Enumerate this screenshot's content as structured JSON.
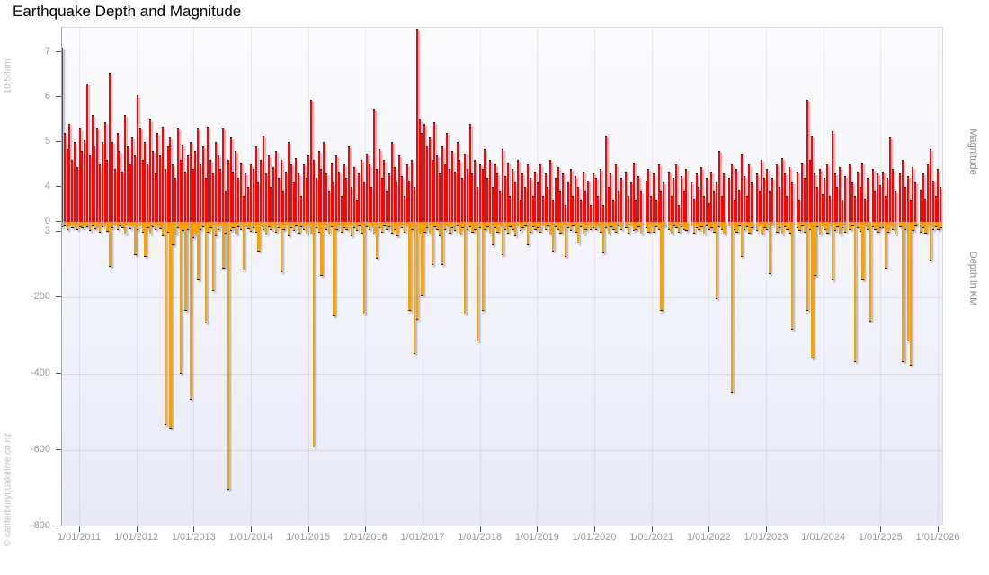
{
  "page": {
    "title": "Earthquake Depth and Magnitude"
  },
  "watermarks": {
    "left_top": "10:58am",
    "left_bottom": "© canterburyquakelive.co.nz"
  },
  "axes": {
    "right_label_magnitude": "Magnitude",
    "right_label_depth": "Depth in KM",
    "magnitude_ticks": [
      7,
      6,
      5,
      4,
      3
    ],
    "depth_ticks": [
      0,
      -200,
      -400,
      -600,
      -800
    ],
    "x_ticks": [
      "1/01/2011",
      "1/01/2012",
      "1/01/2013",
      "1/01/2014",
      "1/01/2015",
      "1/01/2016",
      "1/01/2017",
      "1/01/2018",
      "1/01/2019",
      "1/01/2020",
      "1/01/2021",
      "1/01/2022",
      "1/01/2023",
      "1/01/2024",
      "1/01/2025",
      "1/01/2026"
    ]
  },
  "colors": {
    "magnitude_bar": "#ee0a0a",
    "depth_bar": "#f6a104",
    "bar_outline": "#1d1408",
    "bar_shadow": "rgba(120,120,125,0.55)",
    "axis_line": "#a6a6ae",
    "tick_label": "#97979f",
    "plot_bg_top": "#fcfcfe",
    "plot_bg_bottom": "#e9eaf6"
  },
  "chart_data": {
    "type": "bar",
    "title": "Earthquake Depth and Magnitude",
    "x_axis": {
      "start_year_fraction": 2010.69,
      "end_year_fraction": 2026.08,
      "slot_step_years": 0.044,
      "tick_labels": [
        "1/01/2011",
        "1/01/2012",
        "1/01/2013",
        "1/01/2014",
        "1/01/2015",
        "1/01/2016",
        "1/01/2017",
        "1/01/2018",
        "1/01/2019",
        "1/01/2020",
        "1/01/2021",
        "1/01/2022",
        "1/01/2023",
        "1/01/2024",
        "1/01/2025",
        "1/01/2026"
      ]
    },
    "magnitude_axis": {
      "label": "Magnitude",
      "range": [
        3,
        7.54
      ],
      "ticks": [
        3,
        4,
        5,
        6,
        7
      ]
    },
    "depth_axis": {
      "label": "Depth in KM",
      "range": [
        0,
        -800
      ],
      "ticks": [
        0,
        -200,
        -400,
        -600,
        -800
      ],
      "plotted_downward": true
    },
    "grid": {
      "vertical_per_year": true,
      "horizontal_depth_lines": [
        -200,
        -400,
        -600
      ]
    },
    "legend_position": "none",
    "series": [
      {
        "name": "Magnitude",
        "color": "#ee0a0a",
        "axis": "magnitude",
        "values": [
          7.1,
          5.2,
          4.85,
          5.4,
          4.6,
          5.0,
          4.45,
          5.3,
          4.8,
          5.05,
          6.3,
          4.7,
          5.6,
          4.9,
          5.3,
          4.5,
          5.0,
          5.45,
          4.6,
          6.55,
          5.0,
          4.4,
          5.2,
          4.8,
          4.35,
          5.6,
          4.9,
          4.5,
          5.1,
          4.7,
          6.05,
          5.3,
          4.6,
          5.0,
          4.5,
          5.5,
          4.8,
          4.3,
          5.2,
          4.7,
          5.35,
          4.4,
          4.9,
          5.1,
          4.5,
          4.2,
          5.3,
          4.6,
          4.95,
          4.35,
          4.7,
          5.0,
          4.4,
          4.8,
          5.3,
          4.5,
          4.9,
          4.2,
          5.35,
          4.6,
          4.3,
          5.0,
          4.7,
          4.4,
          5.3,
          3.9,
          4.6,
          5.1,
          4.35,
          4.8,
          4.2,
          4.55,
          3.8,
          4.3,
          4.0,
          4.5,
          4.4,
          4.9,
          4.1,
          4.6,
          5.15,
          4.3,
          4.7,
          4.0,
          4.45,
          4.8,
          4.2,
          4.6,
          3.9,
          4.35,
          5.0,
          4.5,
          4.1,
          4.65,
          4.3,
          3.8,
          4.5,
          4.2,
          4.7,
          5.95,
          4.6,
          4.2,
          4.8,
          4.4,
          5.0,
          4.3,
          3.9,
          4.55,
          4.1,
          4.7,
          4.35,
          3.8,
          4.5,
          4.2,
          4.9,
          4.0,
          4.45,
          3.7,
          4.3,
          4.6,
          4.1,
          4.75,
          4.5,
          4.0,
          5.75,
          4.4,
          4.85,
          4.2,
          4.6,
          3.9,
          4.3,
          5.0,
          4.45,
          4.1,
          4.7,
          4.25,
          3.8,
          4.5,
          4.15,
          4.6,
          4.0,
          7.52,
          5.5,
          5.2,
          5.4,
          4.9,
          5.1,
          4.6,
          5.45,
          4.7,
          4.3,
          4.9,
          4.5,
          5.2,
          4.4,
          4.8,
          4.35,
          5.0,
          4.6,
          4.2,
          4.75,
          4.4,
          5.4,
          4.3,
          4.6,
          4.0,
          4.5,
          4.4,
          4.85,
          4.2,
          4.6,
          4.0,
          4.5,
          4.3,
          3.9,
          4.85,
          4.25,
          4.55,
          3.8,
          4.4,
          4.1,
          4.6,
          3.7,
          4.3,
          4.0,
          4.5,
          4.2,
          3.8,
          4.35,
          4.1,
          4.5,
          3.8,
          4.3,
          4.0,
          4.6,
          3.7,
          4.2,
          4.45,
          3.9,
          4.3,
          3.6,
          4.1,
          4.4,
          3.8,
          4.25,
          4.0,
          3.7,
          4.35,
          3.9,
          4.15,
          3.6,
          4.3,
          4.2,
          3.8,
          4.4,
          3.6,
          5.15,
          4.0,
          4.3,
          3.7,
          4.5,
          3.9,
          4.2,
          null,
          4.35,
          3.8,
          4.1,
          4.55,
          3.7,
          4.25,
          3.9,
          null,
          4.15,
          4.4,
          3.8,
          4.3,
          3.7,
          4.5,
          3.9,
          4.1,
          null,
          4.35,
          3.8,
          4.2,
          4.5,
          3.6,
          4.25,
          3.9,
          4.4,
          null,
          4.1,
          3.75,
          4.3,
          4.0,
          4.45,
          3.8,
          4.2,
          3.65,
          4.35,
          3.9,
          4.1,
          4.8,
          3.8,
          4.3,
          null,
          4.2,
          4.5,
          3.7,
          4.4,
          3.95,
          4.75,
          4.25,
          3.8,
          4.5,
          4.1,
          null,
          4.3,
          3.9,
          4.6,
          4.2,
          4.4,
          3.9,
          4.2,
          null,
          4.5,
          4.0,
          4.65,
          4.3,
          3.8,
          4.45,
          4.1,
          null,
          4.35,
          3.7,
          4.55,
          4.2,
          5.95,
          4.6,
          5.15,
          4.3,
          4.0,
          4.4,
          3.85,
          4.2,
          4.5,
          3.8,
          5.25,
          4.3,
          4.0,
          4.45,
          3.7,
          4.25,
          null,
          4.5,
          4.1,
          3.8,
          4.35,
          4.0,
          4.55,
          3.75,
          4.2,
          null,
          4.4,
          3.9,
          4.3,
          4.05,
          4.35,
          3.8,
          4.2,
          5.1,
          4.4,
          3.9,
          null,
          4.3,
          4.6,
          4.0,
          4.25,
          3.7,
          4.45,
          4.1,
          null,
          3.95,
          4.3,
          3.75,
          4.5,
          4.85,
          4.15,
          3.8,
          4.4,
          4.0,
          4.3
        ]
      },
      {
        "name": "Depth in KM",
        "color": "#f6a104",
        "axis": "depth",
        "values_km_below_surface": [
          12,
          8,
          20,
          10,
          15,
          9,
          18,
          11,
          14,
          9,
          12,
          22,
          8,
          16,
          10,
          25,
          12,
          9,
          24,
          115,
          15,
          10,
          20,
          8,
          14,
          30,
          10,
          16,
          9,
          85,
          18,
          10,
          25,
          90,
          15,
          30,
          12,
          20,
          9,
          16,
          35,
          530,
          25,
          540,
          60,
          30,
          14,
          395,
          22,
          230,
          18,
          465,
          40,
          30,
          150,
          20,
          12,
          265,
          25,
          15,
          180,
          35,
          18,
          10,
          120,
          28,
          700,
          22,
          15,
          30,
          12,
          20,
          125,
          9,
          16,
          24,
          15,
          25,
          75,
          10,
          20,
          30,
          12,
          18,
          9,
          25,
          14,
          130,
          20,
          10,
          35,
          15,
          22,
          8,
          28,
          12,
          18,
          30,
          10,
          30,
          590,
          15,
          25,
          140,
          10,
          20,
          30,
          12,
          245,
          18,
          9,
          25,
          14,
          20,
          10,
          35,
          15,
          22,
          8,
          28,
          240,
          12,
          20,
          10,
          30,
          95,
          15,
          25,
          8,
          18,
          12,
          28,
          20,
          35,
          10,
          15,
          25,
          9,
          230,
          18,
          345,
          255,
          30,
          190,
          25,
          15,
          30,
          110,
          12,
          20,
          35,
          110,
          18,
          10,
          28,
          15,
          22,
          8,
          30,
          14,
          240,
          20,
          12,
          25,
          18,
          310,
          15,
          230,
          20,
          12,
          30,
          60,
          15,
          25,
          10,
          85,
          18,
          28,
          12,
          20,
          35,
          10,
          22,
          15,
          8,
          60,
          25,
          12,
          18,
          15,
          25,
          10,
          20,
          8,
          30,
          75,
          12,
          18,
          28,
          10,
          90,
          15,
          22,
          8,
          25,
          55,
          12,
          30,
          18,
          10,
          20,
          14,
          20,
          10,
          25,
          80,
          15,
          30,
          12,
          18,
          25,
          8,
          20,
          null,
          15,
          28,
          10,
          22,
          18,
          12,
          30,
          null,
          15,
          25,
          10,
          25,
          12,
          18,
          230,
          10,
          null,
          20,
          30,
          8,
          15,
          25,
          12,
          18,
          22,
          null,
          10,
          28,
          14,
          20,
          12,
          30,
          8,
          18,
          15,
          25,
          200,
          12,
          20,
          30,
          null,
          10,
          445,
          18,
          25,
          8,
          90,
          20,
          12,
          28,
          15,
          null,
          22,
          10,
          30,
          14,
          20,
          135,
          10,
          null,
          25,
          15,
          30,
          12,
          18,
          28,
          280,
          null,
          15,
          22,
          8,
          25,
          230,
          18,
          355,
          140,
          12,
          30,
          10,
          18,
          28,
          10,
          150,
          22,
          12,
          30,
          15,
          25,
          null,
          20,
          8,
          365,
          14,
          24,
          150,
          10,
          18,
          260,
          12,
          20,
          25,
          15,
          15,
          120,
          25,
          10,
          20,
          30,
          null,
          12,
          365,
          18,
          310,
          375,
          22,
          8,
          null,
          25,
          15,
          28,
          10,
          100,
          18,
          12,
          20,
          15,
          25
        ]
      }
    ]
  }
}
